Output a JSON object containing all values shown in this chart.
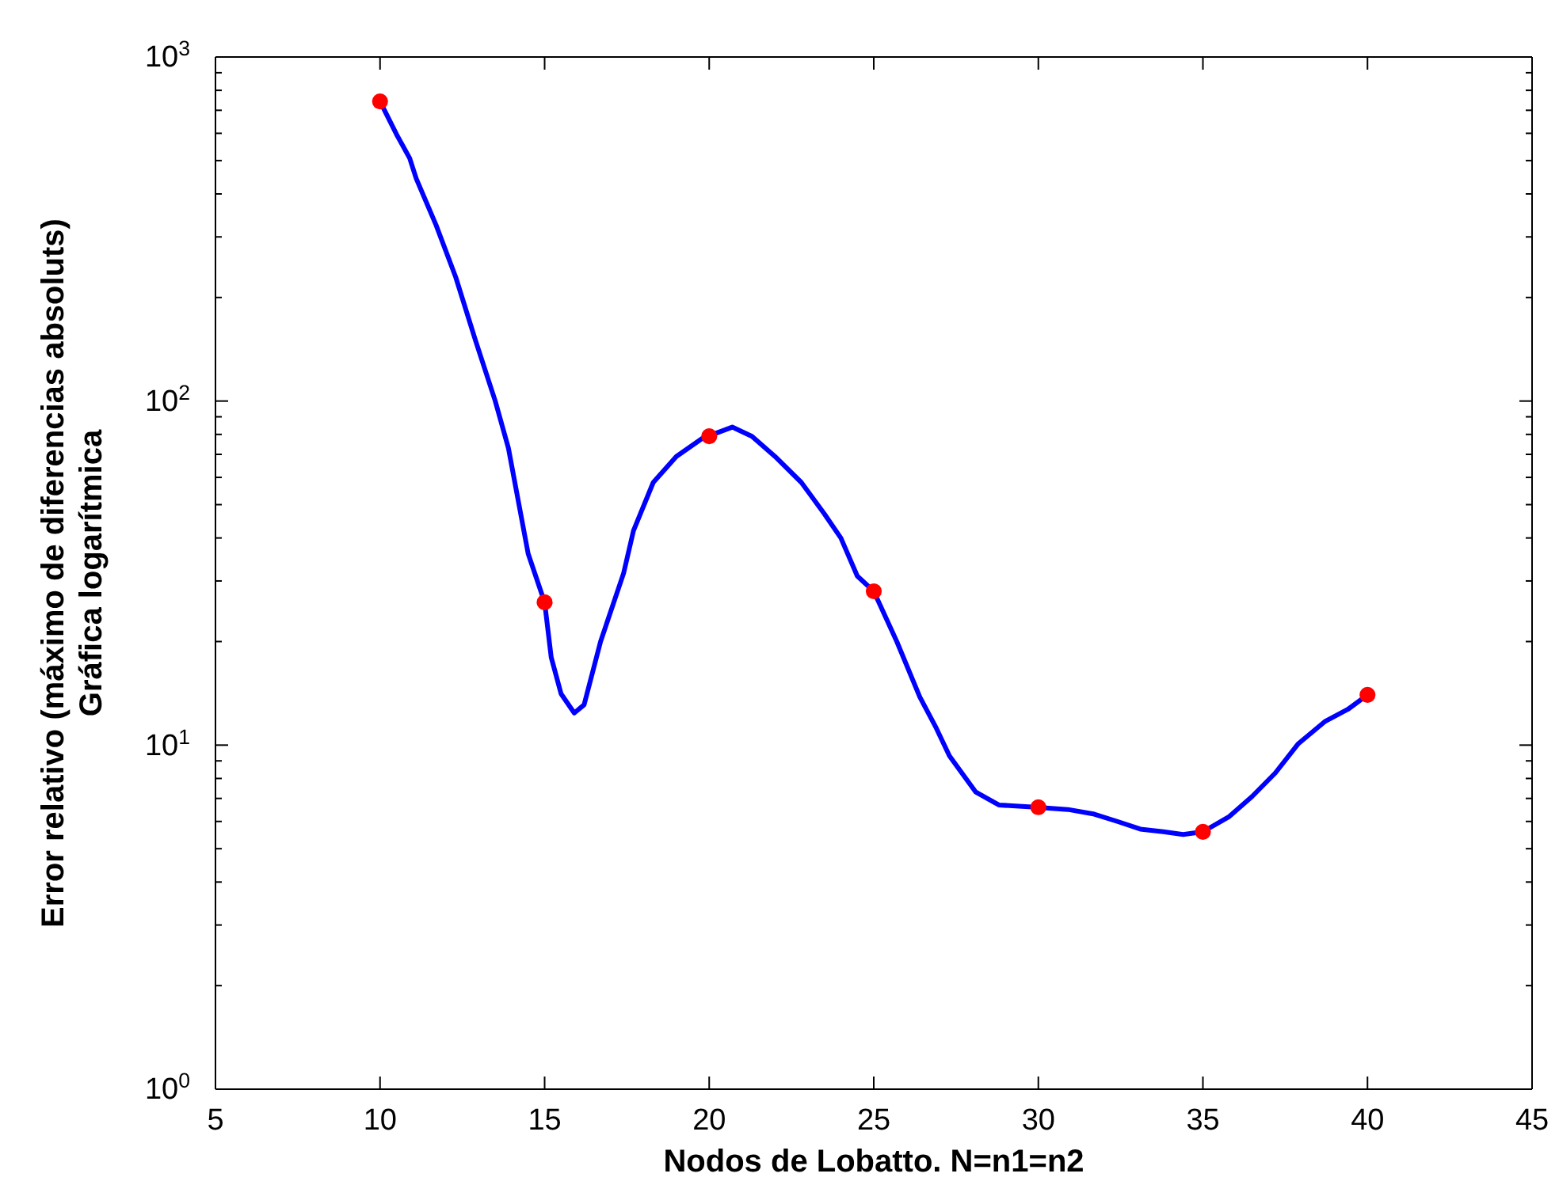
{
  "chart_data": {
    "type": "line",
    "xlabel": "Nodos de Lobatto. N=n1=n2",
    "ylabel": "Error relativo (máximo de diferencias absoluts)\nGráfica logarítmica",
    "log": "y",
    "xlim": [
      5,
      45
    ],
    "xticks": [
      5,
      10,
      15,
      20,
      25,
      30,
      35,
      40,
      45
    ],
    "ylim": [
      1,
      1000
    ],
    "yticks": [
      {
        "value": 1,
        "label": "10$^{0}$"
      },
      {
        "value": 2,
        "label": null
      },
      {
        "value": 3,
        "label": null
      },
      {
        "value": 4,
        "label": null
      },
      {
        "value": 5,
        "label": null
      },
      {
        "value": 6,
        "label": null
      },
      {
        "value": 7,
        "label": null
      },
      {
        "value": 8,
        "label": null
      },
      {
        "value": 9,
        "label": null
      },
      {
        "value": 10,
        "label": "10$^{1}$"
      },
      {
        "value": 20,
        "label": null
      },
      {
        "value": 30,
        "label": null
      },
      {
        "value": 40,
        "label": null
      },
      {
        "value": 50,
        "label": null
      },
      {
        "value": 60,
        "label": null
      },
      {
        "value": 70,
        "label": null
      },
      {
        "value": 80,
        "label": null
      },
      {
        "value": 90,
        "label": null
      },
      {
        "value": 100,
        "label": "10$^{2}$"
      },
      {
        "value": 200,
        "label": null
      },
      {
        "value": 300,
        "label": null
      },
      {
        "value": 400,
        "label": null
      },
      {
        "value": 500,
        "label": null
      },
      {
        "value": 600,
        "label": null
      },
      {
        "value": 700,
        "label": null
      },
      {
        "value": 800,
        "label": null
      },
      {
        "value": 900,
        "label": null
      },
      {
        "value": 1000,
        "label": "10$^{3}$"
      }
    ],
    "grid": false,
    "series": [
      {
        "color": "#0000ff",
        "marker": "none",
        "line_style": "solid",
        "x": [
          10,
          10.5,
          10.9,
          11.1,
          11.7,
          12.3,
          12.9,
          13.5,
          13.9,
          14.5,
          15,
          15.2,
          15.5,
          15.9,
          16.2,
          16.7,
          17.4,
          17.7,
          18.3,
          19,
          19.8,
          20.7,
          21.3,
          22,
          22.8,
          23.5,
          24,
          24.5,
          25,
          25.7,
          26.4,
          26.9,
          27.3,
          28.1,
          28.8,
          29.9,
          30.9,
          31.7,
          32.4,
          33.1,
          33.8,
          34.4,
          35,
          35.8,
          36.5,
          37.2,
          37.9,
          38.7,
          39.4,
          40
        ],
        "values": [
          743,
          596,
          508,
          443,
          325,
          229,
          150,
          100,
          73,
          36,
          26,
          18,
          14.1,
          12.4,
          13.1,
          20,
          31.6,
          42,
          58,
          69,
          78,
          84,
          79,
          69,
          58,
          47,
          40,
          31,
          28,
          20,
          13.8,
          11.2,
          9.3,
          7.3,
          6.7,
          6.6,
          6.5,
          6.3,
          6,
          5.7,
          5.6,
          5.5,
          5.6,
          6.2,
          7.1,
          8.3,
          10.1,
          11.7,
          12.7,
          14
        ]
      },
      {
        "type": "scatter",
        "color": "#ff0000",
        "marker": "circle",
        "x": [
          10,
          15,
          20,
          25,
          30,
          35,
          40
        ],
        "values": [
          743,
          26,
          79,
          28,
          6.6,
          5.6,
          14
        ]
      }
    ]
  }
}
